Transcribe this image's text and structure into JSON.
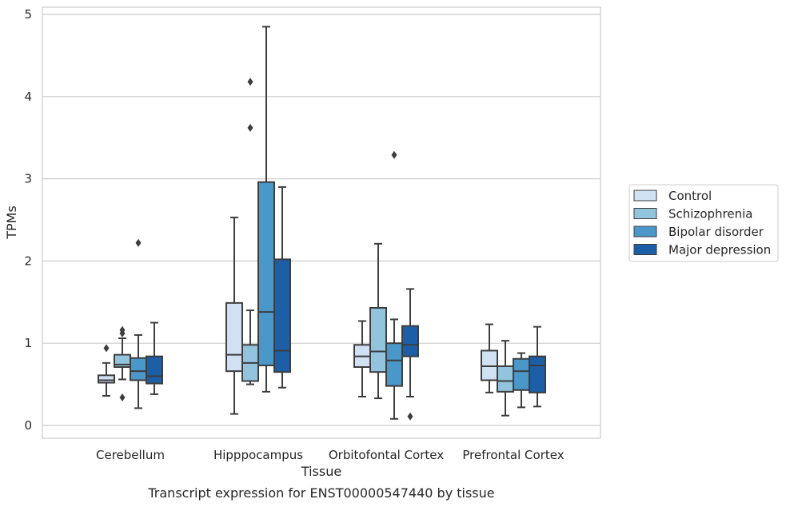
{
  "chart_data": {
    "type": "box",
    "title": "",
    "caption": "Transcript expression for ENST00000547440 by tissue",
    "xlabel": "Tissue",
    "ylabel": "TPMs",
    "ylim": [
      -0.15,
      5.1
    ],
    "yticks": [
      0,
      1,
      2,
      3,
      4,
      5
    ],
    "grid": "horizontal",
    "legend_position": "right",
    "categories": [
      "Cerebellum",
      "Hipppocampus",
      "Orbitofontal Cortex",
      "Prefrontal Cortex"
    ],
    "series": [
      {
        "name": "Control",
        "color": "#cfe1f2",
        "boxes": [
          {
            "whisker_low": 0.36,
            "q1": 0.52,
            "median": 0.55,
            "q3": 0.61,
            "whisker_high": 0.76,
            "outliers": [
              0.94
            ]
          },
          {
            "whisker_low": 0.14,
            "q1": 0.66,
            "median": 0.86,
            "q3": 1.49,
            "whisker_high": 2.53,
            "outliers": []
          },
          {
            "whisker_low": 0.35,
            "q1": 0.71,
            "median": 0.84,
            "q3": 0.98,
            "whisker_high": 1.27,
            "outliers": []
          },
          {
            "whisker_low": 0.4,
            "q1": 0.55,
            "median": 0.72,
            "q3": 0.91,
            "whisker_high": 1.23,
            "outliers": []
          }
        ]
      },
      {
        "name": "Schizophrenia",
        "color": "#93c4de",
        "boxes": [
          {
            "whisker_low": 0.56,
            "q1": 0.71,
            "median": 0.74,
            "q3": 0.86,
            "whisker_high": 1.06,
            "outliers": [
              1.12,
              1.16,
              0.34
            ]
          },
          {
            "whisker_low": 0.5,
            "q1": 0.54,
            "median": 0.76,
            "q3": 0.98,
            "whisker_high": 1.4,
            "outliers": [
              4.18,
              3.62
            ]
          },
          {
            "whisker_low": 0.33,
            "q1": 0.65,
            "median": 0.9,
            "q3": 1.43,
            "whisker_high": 2.21,
            "outliers": []
          },
          {
            "whisker_low": 0.12,
            "q1": 0.41,
            "median": 0.54,
            "q3": 0.72,
            "whisker_high": 1.03,
            "outliers": []
          }
        ]
      },
      {
        "name": "Bipolar disorder",
        "color": "#4a98c9",
        "boxes": [
          {
            "whisker_low": 0.21,
            "q1": 0.55,
            "median": 0.66,
            "q3": 0.82,
            "whisker_high": 1.1,
            "outliers": [
              2.22
            ]
          },
          {
            "whisker_low": 0.41,
            "q1": 0.73,
            "median": 1.38,
            "q3": 2.96,
            "whisker_high": 4.85,
            "outliers": []
          },
          {
            "whisker_low": 0.08,
            "q1": 0.48,
            "median": 0.79,
            "q3": 1.0,
            "whisker_high": 1.29,
            "outliers": [
              3.29
            ]
          },
          {
            "whisker_low": 0.22,
            "q1": 0.43,
            "median": 0.66,
            "q3": 0.81,
            "whisker_high": 0.88,
            "outliers": []
          }
        ]
      },
      {
        "name": "Major depression",
        "color": "#1c5fa6",
        "boxes": [
          {
            "whisker_low": 0.38,
            "q1": 0.51,
            "median": 0.6,
            "q3": 0.84,
            "whisker_high": 1.25,
            "outliers": []
          },
          {
            "whisker_low": 0.46,
            "q1": 0.65,
            "median": 0.91,
            "q3": 2.02,
            "whisker_high": 2.9,
            "outliers": []
          },
          {
            "whisker_low": 0.35,
            "q1": 0.84,
            "median": 0.98,
            "q3": 1.21,
            "whisker_high": 1.66,
            "outliers": [
              0.11
            ]
          },
          {
            "whisker_low": 0.23,
            "q1": 0.4,
            "median": 0.73,
            "q3": 0.84,
            "whisker_high": 1.2,
            "outliers": []
          }
        ]
      }
    ]
  }
}
